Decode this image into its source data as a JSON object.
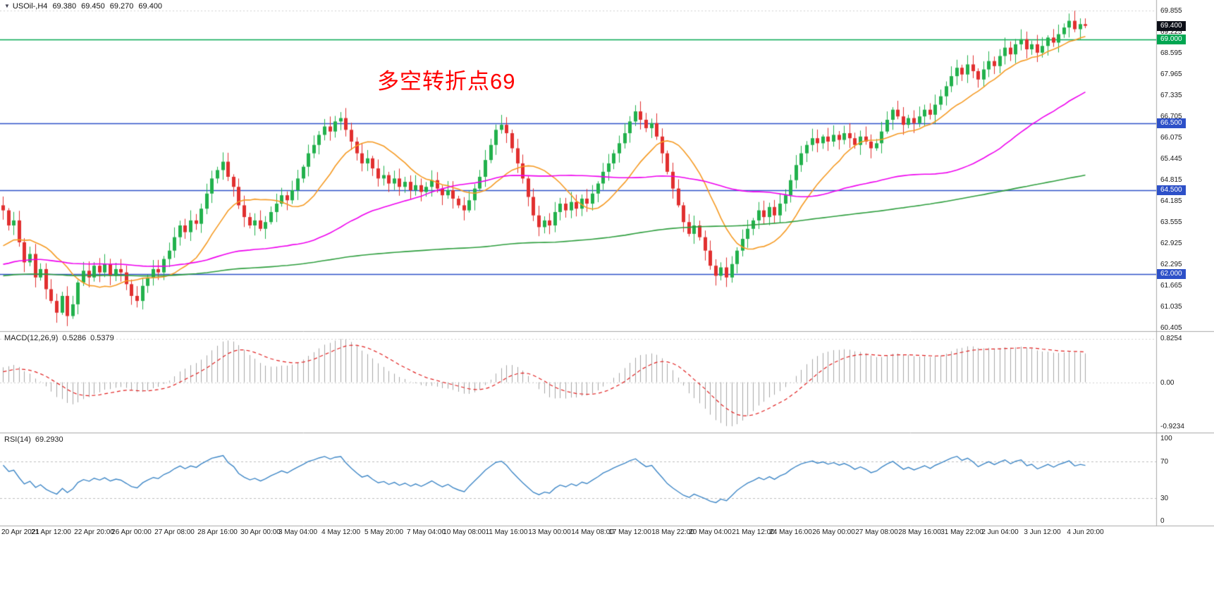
{
  "header": {
    "collapse_icon": "▼",
    "symbol": "USOil-,H4",
    "open": "69.380",
    "high": "69.450",
    "low": "69.270",
    "close": "69.400"
  },
  "annotation": {
    "text": "多空转折点69",
    "color": "#ff0000"
  },
  "price_axis": {
    "ticks": [
      "69.855",
      "69.225",
      "68.595",
      "67.965",
      "67.335",
      "66.705",
      "66.075",
      "65.445",
      "64.815",
      "64.185",
      "63.555",
      "62.925",
      "62.295",
      "61.665",
      "61.035",
      "60.405"
    ],
    "badges": [
      {
        "text": "69.400",
        "bg": "#0c0f18",
        "type": "current-price"
      },
      {
        "text": "69.000",
        "bg": "#00a651",
        "type": "level"
      },
      {
        "text": "66.500",
        "bg": "#2d50c8",
        "type": "level"
      },
      {
        "text": "64.500",
        "bg": "#2d50c8",
        "type": "level"
      },
      {
        "text": "62.000",
        "bg": "#2d50c8",
        "type": "level"
      }
    ]
  },
  "indicators": {
    "macd": {
      "label": "MACD(12,26,9)",
      "value_main": "0.5286",
      "value_signal": "0.5379",
      "axis_top": "0.8254",
      "axis_zero": "0.00",
      "axis_bottom": "-0.9234"
    },
    "rsi": {
      "label": "RSI(14)",
      "value": "69.2930",
      "axis": [
        "100",
        "70",
        "30",
        "0"
      ]
    }
  },
  "time_axis": {
    "labels": [
      "20 Apr 2021",
      "21 Apr 12:00",
      "22 Apr 20:00",
      "26 Apr 00:00",
      "27 Apr 08:00",
      "28 Apr 16:00",
      "30 Apr 00:00",
      "3 May 04:00",
      "4 May 12:00",
      "5 May 20:00",
      "7 May 04:00",
      "10 May 08:00",
      "11 May 16:00",
      "13 May 00:00",
      "14 May 08:00",
      "17 May 12:00",
      "18 May 22:00",
      "20 May 04:00",
      "21 May 12:00",
      "24 May 16:00",
      "26 May 00:00",
      "27 May 08:00",
      "28 May 16:00",
      "31 May 22:00",
      "2 Jun 04:00",
      "3 Jun 12:00",
      "4 Jun 20:00"
    ]
  },
  "chart_data": {
    "type": "candlestick",
    "title": "USOil-,H4",
    "timeframe": "H4",
    "y_range": [
      60.405,
      69.855
    ],
    "y_tick_step": 0.63,
    "current_price": 69.4,
    "closes": [
      63.9,
      63.45,
      63.6,
      62.95,
      62.35,
      62.6,
      61.9,
      62.15,
      61.55,
      61.2,
      60.85,
      61.35,
      60.75,
      61.1,
      61.75,
      62.1,
      61.9,
      62.25,
      62.05,
      62.3,
      61.95,
      62.15,
      62.05,
      61.7,
      61.35,
      61.2,
      61.65,
      61.9,
      62.15,
      62.05,
      62.45,
      62.7,
      63.1,
      63.45,
      63.25,
      63.6,
      63.5,
      63.95,
      64.4,
      64.85,
      65.1,
      65.35,
      64.9,
      64.6,
      64.05,
      63.7,
      63.45,
      63.6,
      63.35,
      63.55,
      63.85,
      64.1,
      64.35,
      64.2,
      64.5,
      64.85,
      65.2,
      65.6,
      65.85,
      66.15,
      66.4,
      66.25,
      66.55,
      66.65,
      66.3,
      65.95,
      65.6,
      65.3,
      65.45,
      65.15,
      64.85,
      64.95,
      64.7,
      64.85,
      64.6,
      64.75,
      64.5,
      64.65,
      64.45,
      64.6,
      64.8,
      64.55,
      64.35,
      64.5,
      64.25,
      64.05,
      63.9,
      64.2,
      64.55,
      64.9,
      65.4,
      65.85,
      66.3,
      66.45,
      66.2,
      65.75,
      65.3,
      64.85,
      64.3,
      63.75,
      63.4,
      63.6,
      63.45,
      63.85,
      64.1,
      63.9,
      64.15,
      63.95,
      64.25,
      64.1,
      64.4,
      64.7,
      65.05,
      65.3,
      65.6,
      65.9,
      66.2,
      66.55,
      66.85,
      66.6,
      66.35,
      66.5,
      66.1,
      65.6,
      65.05,
      64.55,
      64.05,
      63.55,
      63.2,
      63.45,
      63.1,
      62.7,
      62.25,
      61.95,
      62.2,
      61.9,
      62.3,
      62.7,
      63.05,
      63.35,
      63.6,
      63.9,
      63.7,
      64.0,
      63.75,
      64.1,
      64.35,
      64.8,
      65.25,
      65.6,
      65.85,
      66.05,
      65.9,
      66.1,
      65.95,
      66.15,
      66.0,
      66.2,
      66.05,
      65.85,
      66.1,
      65.95,
      65.75,
      65.9,
      66.25,
      66.6,
      66.9,
      66.7,
      66.45,
      66.65,
      66.5,
      66.7,
      66.9,
      66.75,
      67.05,
      67.3,
      67.6,
      67.9,
      68.15,
      67.95,
      68.25,
      68.05,
      67.8,
      68.1,
      68.35,
      68.2,
      68.5,
      68.75,
      68.55,
      68.85,
      69.0,
      68.7,
      68.85,
      68.6,
      68.8,
      69.05,
      68.9,
      69.15,
      69.35,
      69.55,
      69.3,
      69.45,
      69.4
    ],
    "label_indices": [
      0,
      9,
      17,
      24,
      32,
      40,
      48,
      55,
      63,
      71,
      79,
      86,
      94,
      102,
      110,
      117,
      125,
      132,
      140,
      147,
      155,
      163,
      171,
      179,
      186,
      194,
      202
    ],
    "h_lines": [
      {
        "value": 69.0,
        "color": "#00a651"
      },
      {
        "value": 66.5,
        "color": "#2d50c8"
      },
      {
        "value": 64.5,
        "color": "#2d50c8"
      },
      {
        "value": 62.0,
        "color": "#2d50c8"
      }
    ],
    "moving_averages": [
      {
        "period": 13,
        "color": "#f59a23"
      },
      {
        "period": 55,
        "color": "#ee00ee"
      },
      {
        "period": 200,
        "color": "#2e9e3e"
      }
    ],
    "macd": {
      "fast": 12,
      "slow": 26,
      "signal": 9,
      "range": [
        -0.9234,
        0.8254
      ]
    },
    "rsi": {
      "period": 14,
      "range": [
        0,
        100
      ],
      "levels": [
        70,
        30
      ]
    },
    "colors": {
      "bull": "#22b14c",
      "bear": "#e12f2f",
      "macd_hist": "#a6a6a6",
      "macd_signal": "#e02020",
      "rsi_line": "#3d86c6",
      "grid": "#c8c8c8",
      "separator": "#a8a8a8"
    }
  }
}
